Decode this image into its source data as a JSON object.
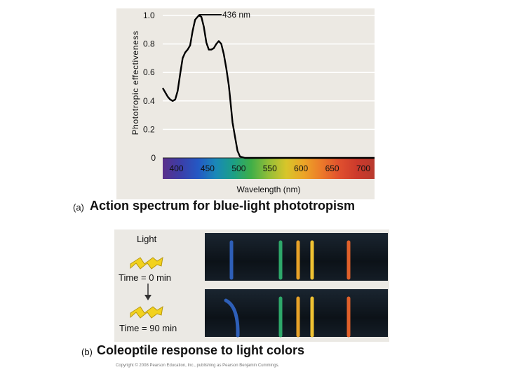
{
  "chart_data": {
    "type": "line",
    "title": "",
    "xlabel": "Wavelength (nm)",
    "ylabel": "Phototropic effectiveness",
    "xlim": [
      378,
      718
    ],
    "ylim": [
      0,
      1.0
    ],
    "x_ticks": [
      "400",
      "450",
      "500",
      "550",
      "600",
      "650",
      "700"
    ],
    "y_ticks": [
      "0",
      "0.2",
      "0.4",
      "0.6",
      "0.8",
      "1.0"
    ],
    "grid": true,
    "annotation": {
      "text": "436 nm",
      "x": 436,
      "y": 1.0
    },
    "series": [
      {
        "color": "#000000",
        "x": [
          378,
          382,
          386,
          390,
          394,
          398,
          402,
          406,
          410,
          414,
          418,
          422,
          426,
          430,
          434,
          436,
          440,
          444,
          448,
          452,
          456,
          460,
          464,
          468,
          472,
          476,
          480,
          484,
          486,
          488,
          490,
          494,
          498,
          502,
          506,
          510,
          520,
          530,
          540,
          560,
          580,
          600,
          620,
          640,
          660,
          680,
          700,
          718
        ],
        "y": [
          0.49,
          0.46,
          0.43,
          0.41,
          0.4,
          0.41,
          0.47,
          0.59,
          0.7,
          0.74,
          0.76,
          0.79,
          0.89,
          0.97,
          0.99,
          1.0,
          0.99,
          0.92,
          0.81,
          0.76,
          0.76,
          0.77,
          0.8,
          0.82,
          0.8,
          0.73,
          0.63,
          0.51,
          0.43,
          0.34,
          0.25,
          0.15,
          0.05,
          0.01,
          0.005,
          0.0,
          0.0,
          0.0,
          0.0,
          0.0,
          0.0,
          0.0,
          0.0,
          0.0,
          0.0,
          0.0,
          0.0,
          0.0
        ]
      }
    ],
    "spectrum_colors": [
      "#5a2f8a",
      "#3c3ea8",
      "#2458c4",
      "#1a88b8",
      "#1b9f86",
      "#3fae48",
      "#93be38",
      "#d8c52a",
      "#eca427",
      "#ec7a2a",
      "#e0502e",
      "#cc3a2c",
      "#b83a2e"
    ]
  },
  "captions": {
    "a_letter": "(a)",
    "a_text": "Action spectrum for blue-light phototropism",
    "b_letter": "(b)",
    "b_text": "Coleoptile response to light colors"
  },
  "panel_b": {
    "light_label": "Light",
    "time0_label": "Time = 0 min",
    "time90_label": "Time = 90 min",
    "coleoptile_colors": [
      "#2e5fb8",
      "#2ea86a",
      "#e8a228",
      "#f0c232",
      "#e0602a"
    ],
    "arrow_color": "#f2d21e"
  },
  "copyright": "Copyright © 2008 Pearson Education, Inc., publishing as Pearson Benjamin Cummings."
}
